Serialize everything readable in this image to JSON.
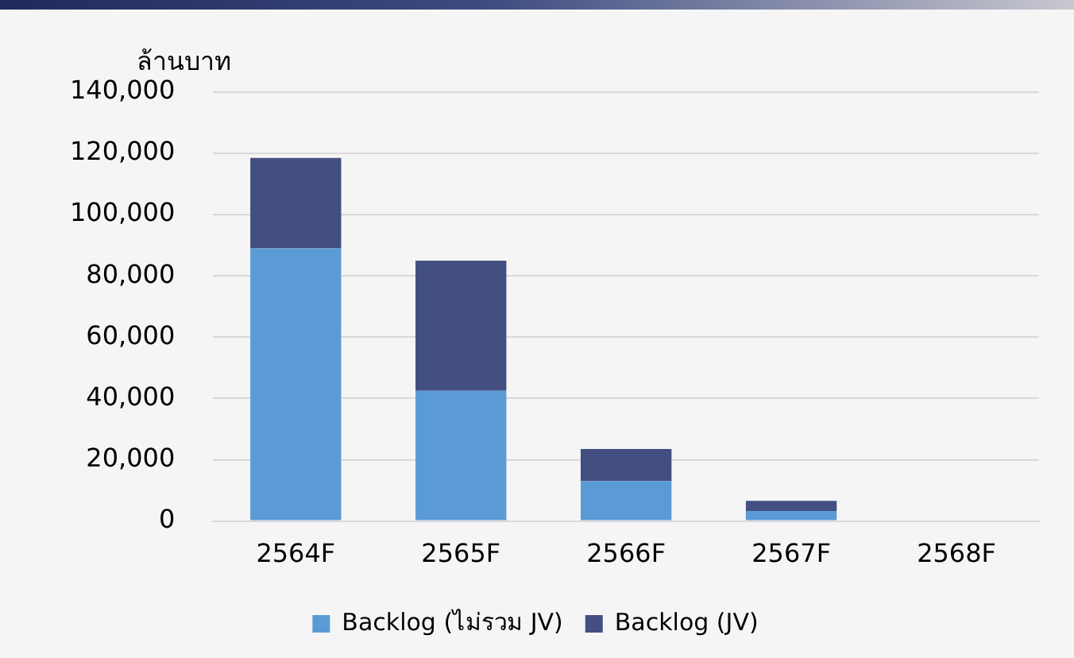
{
  "chart_data": {
    "type": "bar",
    "ylabel": "ล้านบาท",
    "categories": [
      "2564F",
      "2565F",
      "2566F",
      "2567F",
      "2568F"
    ],
    "stacked": true,
    "series": [
      {
        "name": "Backlog (ไม่รวม JV)",
        "color": "#5b9bd5",
        "values": [
          89000,
          42500,
          13000,
          3300,
          0
        ]
      },
      {
        "name": "Backlog (JV)",
        "color": "#434f80",
        "values": [
          29500,
          42500,
          10500,
          3300,
          0
        ]
      }
    ],
    "ylim": [
      0,
      140000
    ],
    "yticks": [
      {
        "value": 0,
        "label": "0"
      },
      {
        "value": 20000,
        "label": "20,000"
      },
      {
        "value": 40000,
        "label": "40,000"
      },
      {
        "value": 60000,
        "label": "60,000"
      },
      {
        "value": 80000,
        "label": "80,000"
      },
      {
        "value": 100000,
        "label": "100,000"
      },
      {
        "value": 120000,
        "label": "120,000"
      },
      {
        "value": 140000,
        "label": "140,000"
      }
    ],
    "grid": "y",
    "legend": "bottom"
  }
}
